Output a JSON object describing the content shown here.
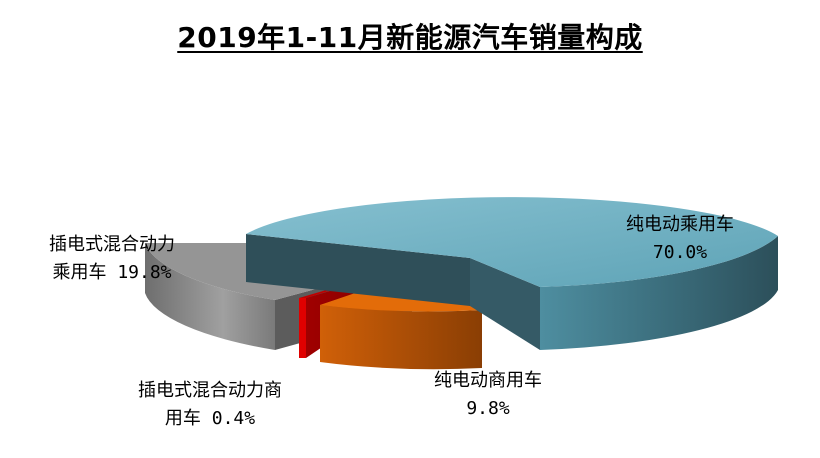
{
  "chart_data": {
    "type": "pie",
    "title": "2019年1-11月新能源汽车销量构成",
    "slices": [
      {
        "name": "纯电动乘用车",
        "line1": "纯电动乘用车",
        "line2": "70.0%",
        "value": 70.0,
        "percent_label": "70.0%",
        "color": "#6fb0c3",
        "exploded": true
      },
      {
        "name": "纯电动商用车",
        "line1": "纯电动商用车",
        "line2": "9.8%",
        "value": 9.8,
        "percent_label": "9.8%",
        "color": "#e36c09",
        "exploded": true
      },
      {
        "name": "插电式混合动力商用车",
        "line1": "插电式混合动力商",
        "line2": "用车 0.4%",
        "value": 0.4,
        "percent_label": "0.4%",
        "color": "#c00000",
        "exploded": true
      },
      {
        "name": "插电式混合动力乘用车",
        "line1": "插电式混合动力",
        "line2": "乘用车 19.8%",
        "value": 19.8,
        "percent_label": "19.8%",
        "color": "#8c8c8c",
        "exploded": true
      }
    ],
    "style": "3d-exploded-pie",
    "legend": "none"
  }
}
